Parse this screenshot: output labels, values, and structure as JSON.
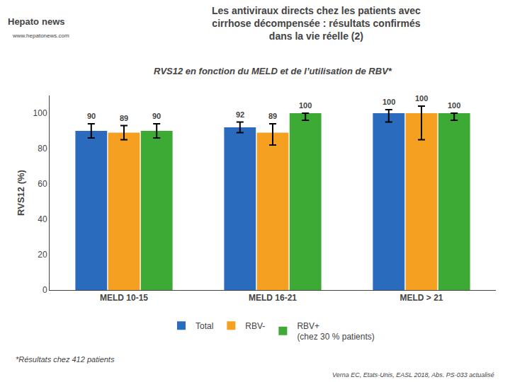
{
  "chart_data": {
    "type": "bar",
    "title": "Les antiviraux directs chez les patients avec\ncirrhose décompensée : résultats confirmés\ndans la vie réelle (2)",
    "subtitle": "RVS12 en fonction du MELD et de l’utilisation de RBV*",
    "categories": [
      "MELD 10-15",
      "MELD 16-21",
      "MELD > 21"
    ],
    "series": [
      {
        "name": "Total",
        "color": "#2B6BBD",
        "values": [
          90,
          92,
          100
        ],
        "error_low": [
          4,
          3,
          5
        ],
        "error_high": [
          4,
          3,
          2
        ]
      },
      {
        "name": "RBV-",
        "color": "#F5A020",
        "values": [
          89,
          89,
          100
        ],
        "error_low": [
          4,
          7,
          15
        ],
        "error_high": [
          4,
          5,
          4
        ]
      },
      {
        "name": "RBV+",
        "color": "#3EAA36",
        "values": [
          90,
          100,
          100
        ],
        "error_low": [
          4,
          4,
          4
        ],
        "error_high": [
          4,
          0,
          0
        ]
      }
    ],
    "ylabel": "RVS12 (%)",
    "ylim": [
      0,
      110
    ],
    "yticks": [
      0,
      20,
      40,
      60,
      80,
      100
    ],
    "grid": false,
    "data_labels": true,
    "legend": "bottom",
    "annotations": [
      "Hepato",
      "news",
      "www.hepatonews.com",
      "(chez 30 % patients)",
      "*Résultats chez 412 patients",
      "Verna EC, Etats-Unis, EASL 2018, Abs. PS-033 actualisé"
    ]
  }
}
